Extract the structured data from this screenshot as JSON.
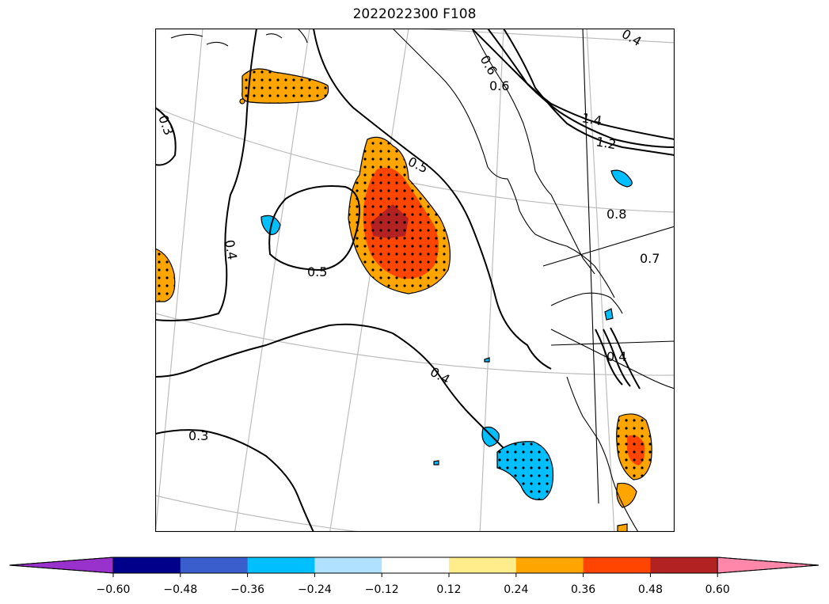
{
  "title": "2022022300 F108",
  "contour_labels": [
    "0.3",
    "0.4",
    "0.5",
    "0.5",
    "0.4",
    "0.3",
    "0.6",
    "0.6",
    "1.4",
    "1.2",
    "0.8",
    "0.7",
    "0.4",
    "0.4"
  ],
  "colorbar": {
    "ticks": [
      "−0.60",
      "−0.48",
      "−0.36",
      "−0.24",
      "−0.12",
      "0.12",
      "0.24",
      "0.36",
      "0.48",
      "0.60"
    ],
    "colors": [
      "#9932CC",
      "#00008B",
      "#3A5FCD",
      "#00BFFF",
      "#B0E2FF",
      "#FFFFFF",
      "#FFEC8B",
      "#FFA500",
      "#FF4500",
      "#B22222",
      "#FF88AA"
    ]
  }
}
